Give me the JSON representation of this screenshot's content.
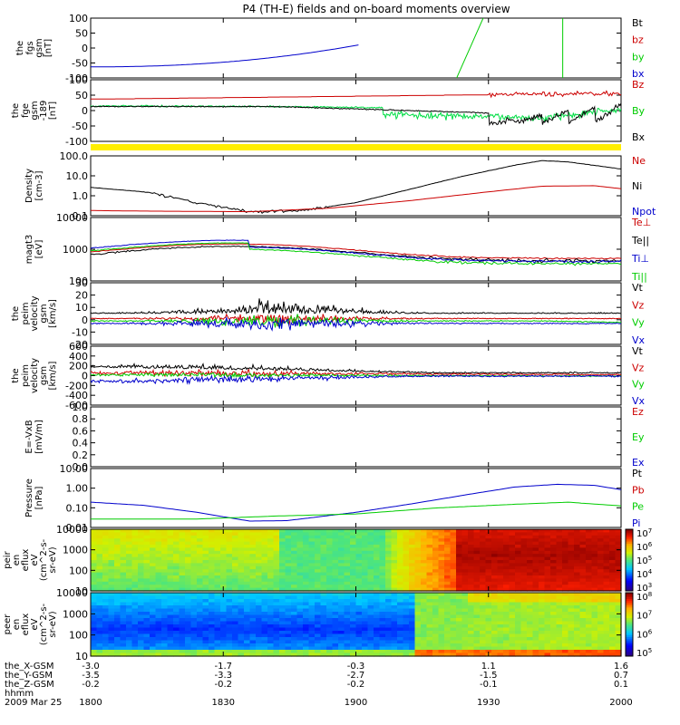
{
  "chart_data": {
    "type": "line",
    "title": "P4 (TH-E) fields and on-board moments overview",
    "date": "2009 Mar 25",
    "x_ticks": [
      "1800",
      "1830",
      "1900",
      "1930",
      "2000"
    ],
    "ephemeris": [
      {
        "label": "the_X-GSM",
        "values": [
          "-3.0",
          "-1.7",
          "-0.3",
          "1.1",
          "1.6"
        ]
      },
      {
        "label": "the_Y-GSM",
        "values": [
          "-3.5",
          "-3.3",
          "-2.7",
          "-1.5",
          "0.7"
        ]
      },
      {
        "label": "the_Z-GSM",
        "values": [
          "-0.2",
          "-0.2",
          "-0.2",
          "-0.1",
          "0.1"
        ]
      },
      {
        "label": "hhmm",
        "values": []
      }
    ],
    "panels": [
      {
        "id": "fgs",
        "ylabel": [
          "the",
          "fgs",
          "gsm",
          "[nT]"
        ],
        "yticks": [
          "100",
          "50",
          "0",
          "-50",
          "-100"
        ],
        "legend": [
          {
            "name": "Bt",
            "color": "#000000"
          },
          {
            "name": "bz",
            "color": "#cc0000"
          },
          {
            "name": "by",
            "color": "#00cc00"
          },
          {
            "name": "bx",
            "color": "#0000cc"
          }
        ]
      },
      {
        "id": "fge",
        "ylabel": [
          "the",
          "fge",
          "gsm",
          "-189",
          "[nT]"
        ],
        "yticks": [
          "100",
          "50",
          "0",
          "-50",
          "-100"
        ],
        "legend": [
          {
            "name": "Bz",
            "color": "#cc0000"
          },
          {
            "name": "By",
            "color": "#00cc00"
          },
          {
            "name": "Bx",
            "color": "#000000"
          }
        ]
      },
      {
        "id": "density",
        "ylabel": [
          "Density",
          "[cm-3]"
        ],
        "yticks": [
          "100.0",
          "10.0",
          "1.0",
          "0.1"
        ],
        "legend": [
          {
            "name": "Ne",
            "color": "#cc0000"
          },
          {
            "name": "Ni",
            "color": "#000000"
          },
          {
            "name": "Npot",
            "color": "#0000cc"
          }
        ]
      },
      {
        "id": "temp",
        "ylabel": [
          "magt3",
          "[eV]"
        ],
        "yticks": [
          "10000",
          "1000",
          "100"
        ],
        "legend": [
          {
            "name": "Te⊥",
            "color": "#cc0000"
          },
          {
            "name": "Te||",
            "color": "#000000"
          },
          {
            "name": "Ti⊥",
            "color": "#0000cc"
          },
          {
            "name": "Ti||",
            "color": "#00cc00"
          }
        ]
      },
      {
        "id": "eevel",
        "ylabel": [
          "the",
          "peim",
          "velocity",
          "gsm",
          "[km/s]"
        ],
        "yticks": [
          "30",
          "20",
          "10",
          "0",
          "-10",
          "-20"
        ],
        "legend": [
          {
            "name": "Vt",
            "color": "#000000"
          },
          {
            "name": "Vz",
            "color": "#cc0000"
          },
          {
            "name": "Vy",
            "color": "#00cc00"
          },
          {
            "name": "Vx",
            "color": "#0000cc"
          }
        ]
      },
      {
        "id": "ivel",
        "ylabel": [
          "the",
          "peim",
          "velocity",
          "gsm",
          "[km/s]"
        ],
        "yticks": [
          "600",
          "400",
          "200",
          "0",
          "-200",
          "-400",
          "-600"
        ],
        "legend": [
          {
            "name": "Vt",
            "color": "#000000"
          },
          {
            "name": "Vz",
            "color": "#cc0000"
          },
          {
            "name": "Vy",
            "color": "#00cc00"
          },
          {
            "name": "Vx",
            "color": "#0000cc"
          }
        ]
      },
      {
        "id": "efield",
        "ylabel": [
          "E=-VxB",
          "[mV/m]"
        ],
        "yticks": [
          "1.0",
          "0.8",
          "0.6",
          "0.4",
          "0.2",
          "0.0"
        ],
        "legend": [
          {
            "name": "Ez",
            "color": "#cc0000"
          },
          {
            "name": "Ey",
            "color": "#00cc00"
          },
          {
            "name": "Ex",
            "color": "#0000cc"
          }
        ]
      },
      {
        "id": "pressure",
        "ylabel": [
          "Pressure",
          "[nPa]"
        ],
        "yticks": [
          "10.00",
          "1.00",
          "0.10",
          "0.01"
        ],
        "legend": [
          {
            "name": "Pt",
            "color": "#000000"
          },
          {
            "name": "Pb",
            "color": "#cc0000"
          },
          {
            "name": "Pe",
            "color": "#00cc00"
          },
          {
            "name": "Pi",
            "color": "#0000cc"
          }
        ]
      },
      {
        "id": "ispec",
        "ylabel": [
          "the",
          "peir",
          "en",
          "eflux",
          "eV",
          "(cm^2-s-",
          "sr-eV)"
        ],
        "yticks": [
          "10000",
          "1000",
          "100",
          "10"
        ],
        "colorbar": [
          "10^7",
          "10^6",
          "10^5",
          "10^4",
          "10^3"
        ]
      },
      {
        "id": "espec",
        "ylabel": [
          "the",
          "peer",
          "en",
          "eflux",
          "eV",
          "(cm^2-s-",
          "sr-eV)"
        ],
        "yticks": [
          "10000",
          "1000",
          "100",
          "10"
        ],
        "colorbar": [
          "10^8",
          "10^7",
          "10^6",
          "10^5"
        ]
      }
    ],
    "series_shapes": {
      "density_Ni": [
        [
          0,
          2.6
        ],
        [
          0.1,
          1.5
        ],
        [
          0.2,
          0.4
        ],
        [
          0.3,
          0.13
        ],
        [
          0.4,
          0.15
        ],
        [
          0.5,
          0.4
        ],
        [
          0.6,
          2.0
        ],
        [
          0.7,
          10
        ],
        [
          0.8,
          40
        ],
        [
          0.85,
          70
        ],
        [
          0.9,
          60
        ],
        [
          1.0,
          25
        ]
      ],
      "density_Ne": [
        [
          0,
          0.15
        ],
        [
          0.1,
          0.14
        ],
        [
          0.3,
          0.13
        ],
        [
          0.45,
          0.2
        ],
        [
          0.6,
          0.5
        ],
        [
          0.75,
          1.5
        ],
        [
          0.85,
          3
        ],
        [
          0.95,
          3.2
        ],
        [
          1.0,
          2.2
        ]
      ],
      "pressure_Pi": [
        [
          0,
          0.2
        ],
        [
          0.1,
          0.13
        ],
        [
          0.2,
          0.05
        ],
        [
          0.3,
          0.015
        ],
        [
          0.37,
          0.016
        ],
        [
          0.5,
          0.05
        ],
        [
          0.6,
          0.15
        ],
        [
          0.7,
          0.5
        ],
        [
          0.8,
          1.6
        ],
        [
          0.88,
          2.3
        ],
        [
          0.95,
          2.0
        ],
        [
          1.0,
          1.1
        ]
      ],
      "pressure_Pe": [
        [
          0,
          0.02
        ],
        [
          0.1,
          0.02
        ],
        [
          0.2,
          0.02
        ],
        [
          0.35,
          0.03
        ],
        [
          0.5,
          0.04
        ],
        [
          0.65,
          0.09
        ],
        [
          0.8,
          0.15
        ],
        [
          0.9,
          0.2
        ],
        [
          1.0,
          0.12
        ]
      ]
    }
  }
}
